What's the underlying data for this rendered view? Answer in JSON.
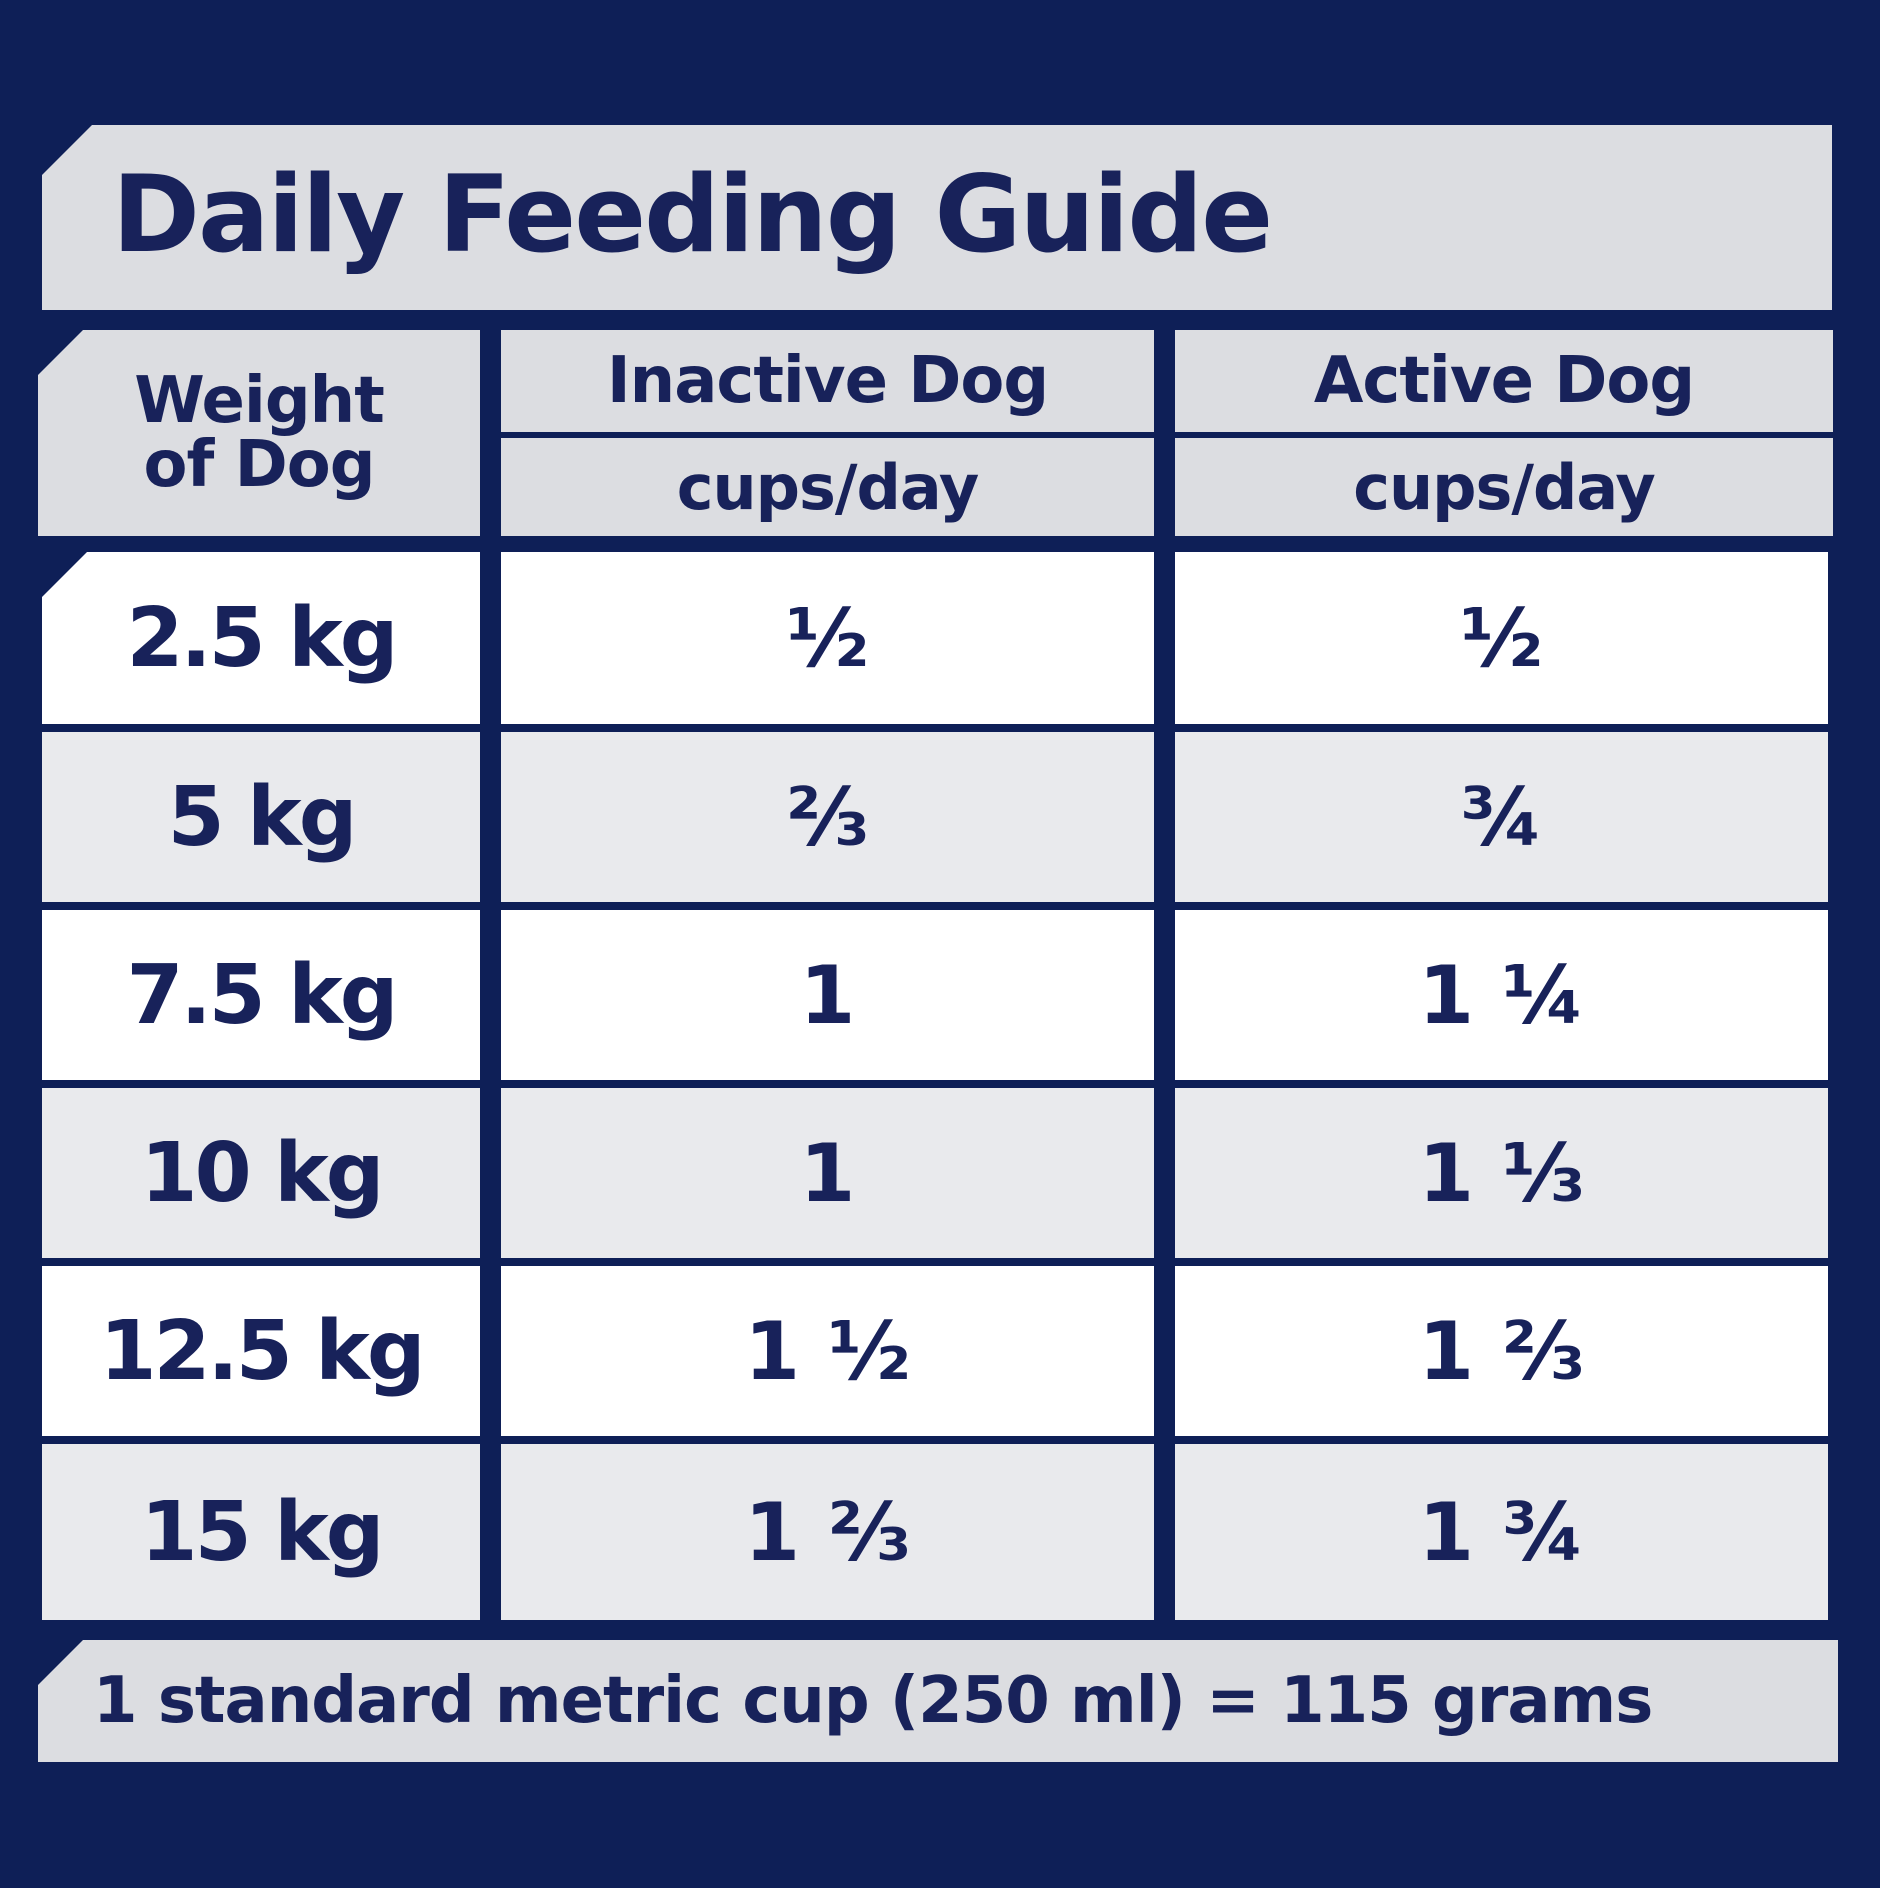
{
  "title": "Daily Feeding Guide",
  "headers": {
    "weight_line1": "Weight",
    "weight_line2": "of Dog",
    "inactive": "Inactive Dog",
    "inactive_unit": "cups/day",
    "active": "Active Dog",
    "active_unit": "cups/day"
  },
  "rows": [
    {
      "weight": "2.5 kg",
      "inactive": "½",
      "active": "½"
    },
    {
      "weight": "5 kg",
      "inactive": "⅔",
      "active": "¾"
    },
    {
      "weight": "7.5 kg",
      "inactive": "1",
      "active": "1 ¼"
    },
    {
      "weight": "10 kg",
      "inactive": "1",
      "active": "1 ⅓"
    },
    {
      "weight": "12.5 kg",
      "inactive": "1 ½",
      "active": "1 ⅔"
    },
    {
      "weight": "15 kg",
      "inactive": "1 ⅔",
      "active": "1 ¾"
    }
  ],
  "footer": "1 standard metric cup (250 ml) = 115 grams",
  "colors": {
    "background": "#0e1f57",
    "text": "#18225a",
    "panel_grey": "#dcdde1",
    "row_white": "#ffffff",
    "row_grey": "#e9eaed"
  }
}
